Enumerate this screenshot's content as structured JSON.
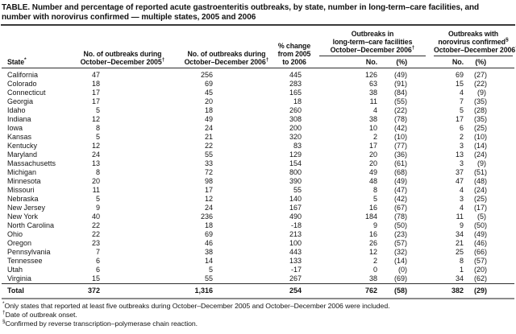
{
  "title": {
    "line1": "TABLE. Number and percentage of reported acute gastroenteritis outbreaks, by state, number in long-term–care facilities, and",
    "line2": "number with norovirus confirmed — multiple states, 2005 and 2006"
  },
  "header": {
    "state": {
      "label": "State",
      "sup": "*"
    },
    "outbreaks_2005": {
      "line1": "No. of outbreaks during",
      "line2": "October–December 2005",
      "sup": "†"
    },
    "outbreaks_2006": {
      "line1": "No. of outbreaks during",
      "line2": "October–December 2006",
      "sup": "†"
    },
    "pct_change": {
      "line1": "% change",
      "line2": "from 2005",
      "line3": "to 2006"
    },
    "ltc_group": {
      "line1": "Outbreaks in",
      "line2": "long-term–care facilities",
      "line3": "October–December 2006",
      "line3_sup": "†"
    },
    "noro_group": {
      "line1": "Outbreaks with",
      "line2": "norovirus confirmed",
      "line2_sup": "§",
      "line3": "October–December 2006",
      "line3_sup": "†"
    },
    "sub": {
      "no": "No.",
      "pct": "(%)"
    }
  },
  "table": {
    "rows": [
      {
        "state": "California",
        "out2005": "47",
        "out2006": "256",
        "pct_change": "445",
        "ltc_no": "126",
        "ltc_pct": "(49)",
        "noro_no": "69",
        "noro_pct": "(27)"
      },
      {
        "state": "Colorado",
        "out2005": "18",
        "out2006": "69",
        "pct_change": "283",
        "ltc_no": "63",
        "ltc_pct": "(91)",
        "noro_no": "15",
        "noro_pct": "(22)"
      },
      {
        "state": "Connecticut",
        "out2005": "17",
        "out2006": "45",
        "pct_change": "165",
        "ltc_no": "38",
        "ltc_pct": "(84)",
        "noro_no": "4",
        "noro_pct": "(9)"
      },
      {
        "state": "Georgia",
        "out2005": "17",
        "out2006": "20",
        "pct_change": "18",
        "ltc_no": "11",
        "ltc_pct": "(55)",
        "noro_no": "7",
        "noro_pct": "(35)"
      },
      {
        "state": "Idaho",
        "out2005": "5",
        "out2006": "18",
        "pct_change": "260",
        "ltc_no": "4",
        "ltc_pct": "(22)",
        "noro_no": "5",
        "noro_pct": "(28)"
      },
      {
        "state": "Indiana",
        "out2005": "12",
        "out2006": "49",
        "pct_change": "308",
        "ltc_no": "38",
        "ltc_pct": "(78)",
        "noro_no": "17",
        "noro_pct": "(35)"
      },
      {
        "state": "Iowa",
        "out2005": "8",
        "out2006": "24",
        "pct_change": "200",
        "ltc_no": "10",
        "ltc_pct": "(42)",
        "noro_no": "6",
        "noro_pct": "(25)"
      },
      {
        "state": "Kansas",
        "out2005": "5",
        "out2006": "21",
        "pct_change": "320",
        "ltc_no": "2",
        "ltc_pct": "(10)",
        "noro_no": "2",
        "noro_pct": "(10)"
      },
      {
        "state": "Kentucky",
        "out2005": "12",
        "out2006": "22",
        "pct_change": "83",
        "ltc_no": "17",
        "ltc_pct": "(77)",
        "noro_no": "3",
        "noro_pct": "(14)"
      },
      {
        "state": "Maryland",
        "out2005": "24",
        "out2006": "55",
        "pct_change": "129",
        "ltc_no": "20",
        "ltc_pct": "(36)",
        "noro_no": "13",
        "noro_pct": "(24)"
      },
      {
        "state": "Massachusetts",
        "out2005": "13",
        "out2006": "33",
        "pct_change": "154",
        "ltc_no": "20",
        "ltc_pct": "(61)",
        "noro_no": "3",
        "noro_pct": "(9)"
      },
      {
        "state": "Michigan",
        "out2005": "8",
        "out2006": "72",
        "pct_change": "800",
        "ltc_no": "49",
        "ltc_pct": "(68)",
        "noro_no": "37",
        "noro_pct": "(51)"
      },
      {
        "state": "Minnesota",
        "out2005": "20",
        "out2006": "98",
        "pct_change": "390",
        "ltc_no": "48",
        "ltc_pct": "(49)",
        "noro_no": "47",
        "noro_pct": "(48)"
      },
      {
        "state": "Missouri",
        "out2005": "11",
        "out2006": "17",
        "pct_change": "55",
        "ltc_no": "8",
        "ltc_pct": "(47)",
        "noro_no": "4",
        "noro_pct": "(24)"
      },
      {
        "state": "Nebraska",
        "out2005": "5",
        "out2006": "12",
        "pct_change": "140",
        "ltc_no": "5",
        "ltc_pct": "(42)",
        "noro_no": "3",
        "noro_pct": "(25)"
      },
      {
        "state": "New Jersey",
        "out2005": "9",
        "out2006": "24",
        "pct_change": "167",
        "ltc_no": "16",
        "ltc_pct": "(67)",
        "noro_no": "4",
        "noro_pct": "(17)"
      },
      {
        "state": "New York",
        "out2005": "40",
        "out2006": "236",
        "pct_change": "490",
        "ltc_no": "184",
        "ltc_pct": "(78)",
        "noro_no": "11",
        "noro_pct": "(5)"
      },
      {
        "state": "North Carolina",
        "out2005": "22",
        "out2006": "18",
        "pct_change": "-18",
        "ltc_no": "9",
        "ltc_pct": "(50)",
        "noro_no": "9",
        "noro_pct": "(50)"
      },
      {
        "state": "Ohio",
        "out2005": "22",
        "out2006": "69",
        "pct_change": "213",
        "ltc_no": "16",
        "ltc_pct": "(23)",
        "noro_no": "34",
        "noro_pct": "(49)"
      },
      {
        "state": "Oregon",
        "out2005": "23",
        "out2006": "46",
        "pct_change": "100",
        "ltc_no": "26",
        "ltc_pct": "(57)",
        "noro_no": "21",
        "noro_pct": "(46)"
      },
      {
        "state": "Pennsylvania",
        "out2005": "7",
        "out2006": "38",
        "pct_change": "443",
        "ltc_no": "12",
        "ltc_pct": "(32)",
        "noro_no": "25",
        "noro_pct": "(66)"
      },
      {
        "state": "Tennessee",
        "out2005": "6",
        "out2006": "14",
        "pct_change": "133",
        "ltc_no": "2",
        "ltc_pct": "(14)",
        "noro_no": "8",
        "noro_pct": "(57)"
      },
      {
        "state": "Utah",
        "out2005": "6",
        "out2006": "5",
        "pct_change": "-17",
        "ltc_no": "0",
        "ltc_pct": "(0)",
        "noro_no": "1",
        "noro_pct": "(20)"
      },
      {
        "state": "Virginia",
        "out2005": "15",
        "out2006": "55",
        "pct_change": "267",
        "ltc_no": "38",
        "ltc_pct": "(69)",
        "noro_no": "34",
        "noro_pct": "(62)"
      }
    ],
    "total": {
      "state": "Total",
      "out2005": "372",
      "out2006": "1,316",
      "pct_change": "254",
      "ltc_no": "762",
      "ltc_pct": "(58)",
      "noro_no": "382",
      "noro_pct": "(29)"
    }
  },
  "footnotes": [
    {
      "marker": "*",
      "text": "Only states that reported at least five outbreaks during October–December 2005 and October–December 2006 were included."
    },
    {
      "marker": "†",
      "text": "Date of outbreak onset."
    },
    {
      "marker": "§",
      "text": "Confirmed by reverse transcription–polymerase chain reaction."
    }
  ],
  "colors": {
    "text": "#141414",
    "rule_dark": "#2e2e2e",
    "rule_bottom": "#8c8c8c",
    "background": "#ffffff"
  }
}
